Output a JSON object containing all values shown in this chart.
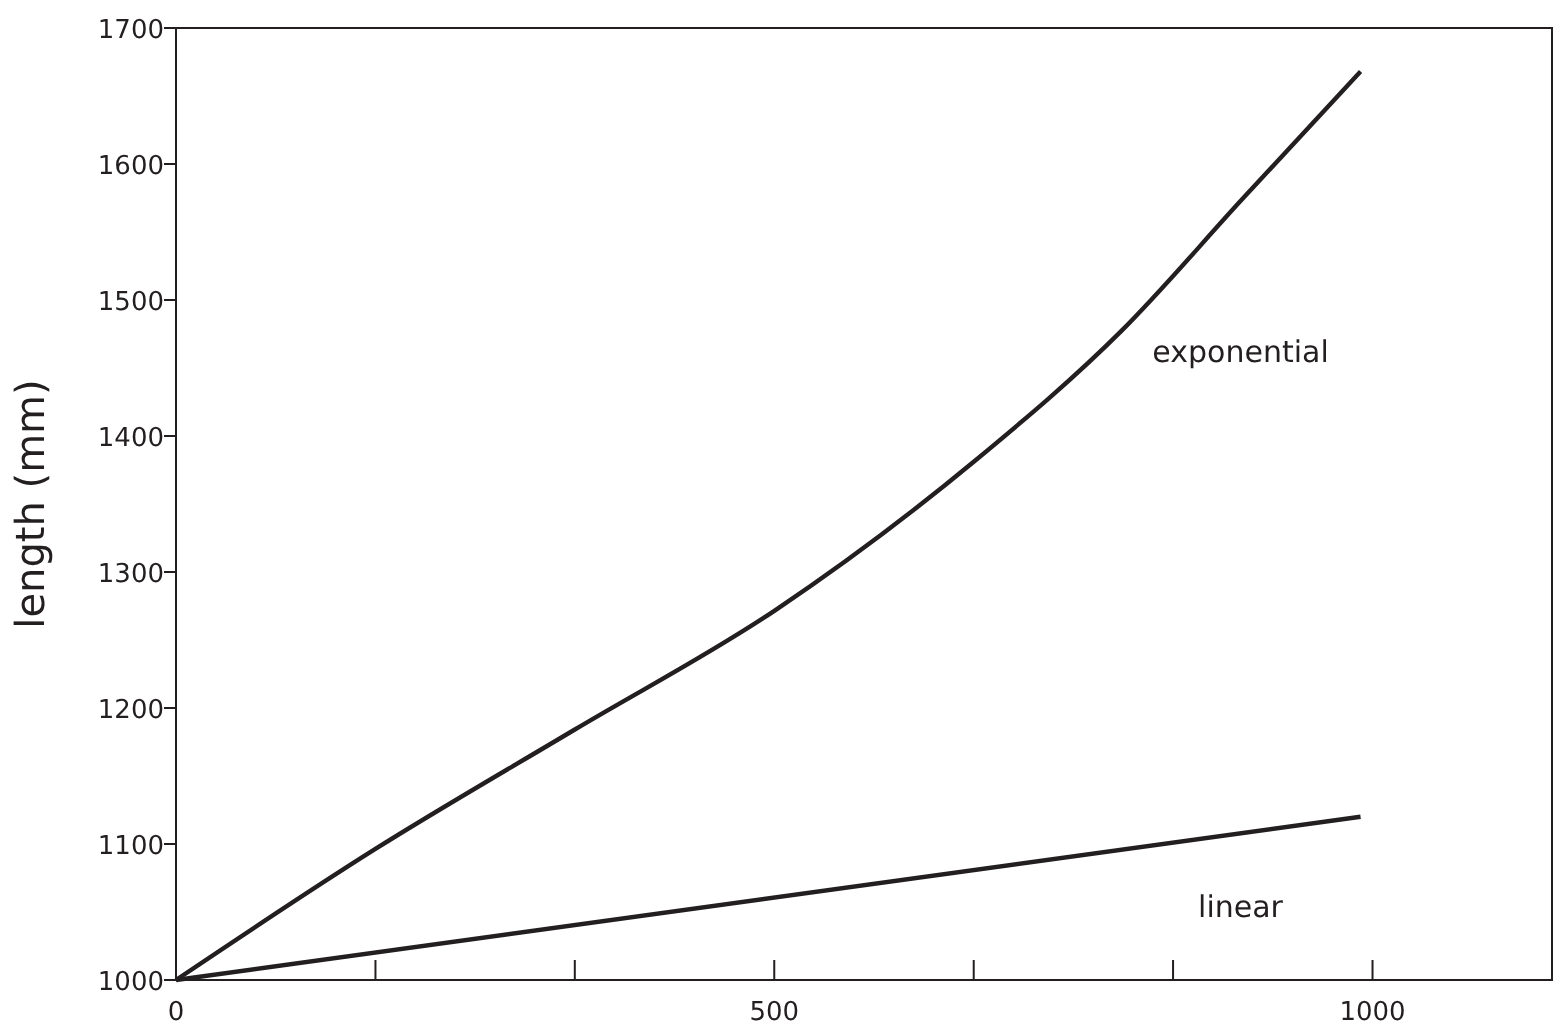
{
  "chart_data": {
    "type": "line",
    "ylabel": "length (mm)",
    "xlim": [
      0,
      1150
    ],
    "ylim": [
      1000,
      1700
    ],
    "xticks": [
      0,
      {
        "value": 166.7,
        "label": null
      },
      {
        "value": 333.3,
        "label": null
      },
      500,
      {
        "value": 666.7,
        "label": null
      },
      {
        "value": 833.3,
        "label": null
      },
      1000
    ],
    "yticks": [
      1000,
      1100,
      1200,
      1300,
      1400,
      1500,
      1600,
      1700
    ],
    "series": [
      {
        "name": "exponential",
        "color": "#231f20",
        "x": [
          0,
          166,
          333,
          501,
          668,
          791,
          891,
          990
        ],
        "values": [
          1000,
          1096,
          1184,
          1272,
          1382,
          1478,
          1574,
          1668
        ]
      },
      {
        "name": "linear",
        "color": "#231f20",
        "x": [
          0,
          990
        ],
        "values": [
          1000,
          1120
        ]
      }
    ]
  }
}
